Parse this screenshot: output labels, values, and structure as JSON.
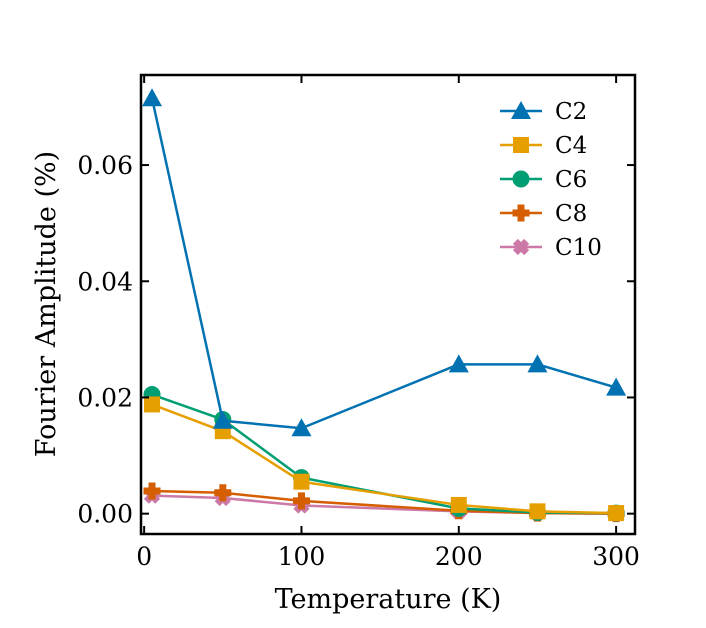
{
  "chart_data": {
    "type": "line",
    "title": "",
    "xlabel": "Temperature (K)",
    "ylabel": "Fourier Amplitude (%)",
    "xlim": [
      -2,
      312
    ],
    "ylim": [
      -0.0035,
      0.0755
    ],
    "x_ticks": [
      0,
      100,
      200,
      300
    ],
    "x_tick_labels": [
      "0",
      "100",
      "200",
      "300"
    ],
    "y_ticks": [
      0.0,
      0.02,
      0.04,
      0.06
    ],
    "y_tick_labels": [
      "0.00",
      "0.02",
      "0.04",
      "0.06"
    ],
    "grid": false,
    "legend_position": "top-right",
    "x": [
      5,
      50,
      100,
      200,
      250,
      300
    ],
    "series": [
      {
        "name": "C2",
        "color": "#0072b2",
        "marker": "triangle",
        "values": [
          0.0715,
          0.016,
          0.0147,
          0.0257,
          0.0257,
          0.0217
        ]
      },
      {
        "name": "C4",
        "color": "#e69f00",
        "marker": "square",
        "values": [
          0.0188,
          0.0142,
          0.0055,
          0.0015,
          0.0004,
          0.0001
        ]
      },
      {
        "name": "C6",
        "color": "#009e73",
        "marker": "circle",
        "values": [
          0.0205,
          0.0162,
          0.0062,
          0.0009,
          0.0002,
          0.0001
        ]
      },
      {
        "name": "C8",
        "color": "#d55e00",
        "marker": "plus",
        "values": [
          0.0039,
          0.0036,
          0.0022,
          0.0005,
          0.0001,
          0.0
        ]
      },
      {
        "name": "C10",
        "color": "#cc79a7",
        "marker": "x",
        "values": [
          0.0031,
          0.0027,
          0.0014,
          0.0004,
          0.0001,
          0.0
        ]
      }
    ]
  }
}
